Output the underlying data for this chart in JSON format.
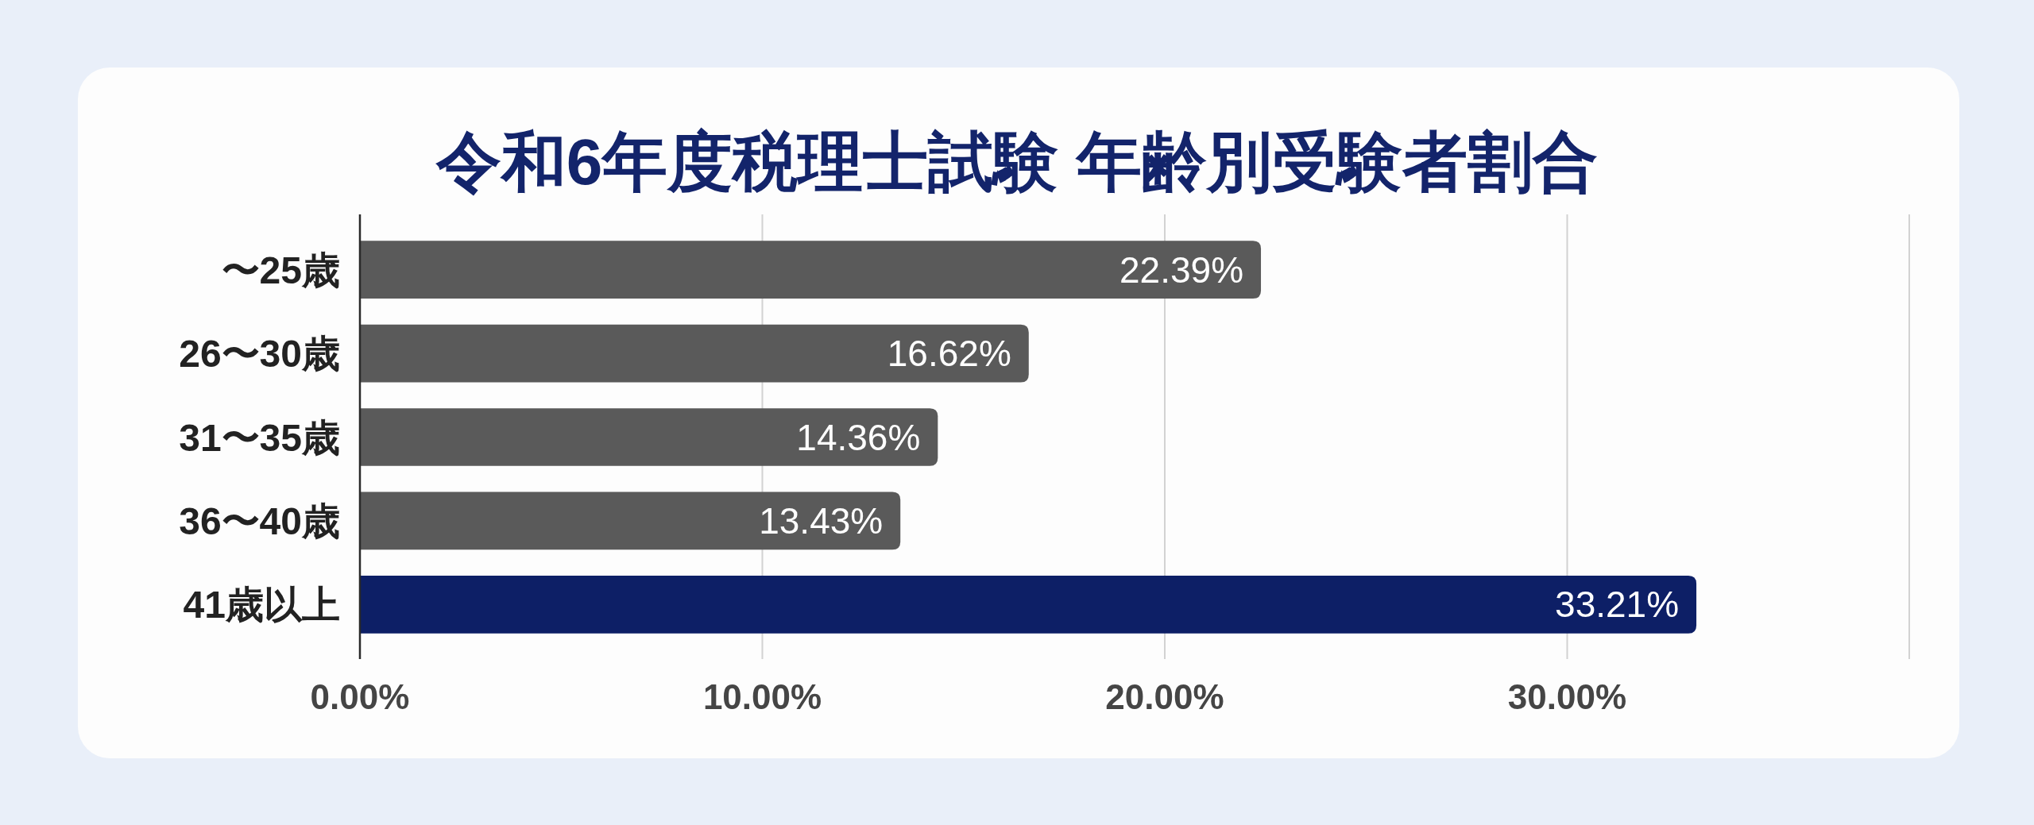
{
  "chart_data": {
    "type": "bar",
    "orientation": "horizontal",
    "title": "令和6年度税理士試験 年齢別受験者割合",
    "categories": [
      "〜25歳",
      "26〜30歳",
      "31〜35歳",
      "36〜40歳",
      "41歳以上"
    ],
    "values": [
      22.39,
      16.62,
      14.36,
      13.43,
      33.21
    ],
    "colors": [
      "#5a5a5a",
      "#5a5a5a",
      "#5a5a5a",
      "#5a5a5a",
      "#0d1f66"
    ],
    "value_labels": [
      "22.39%",
      "16.62%",
      "14.36%",
      "13.43%",
      "33.21%"
    ],
    "xlim": [
      0,
      38.5
    ],
    "xticks": [
      {
        "value": 0,
        "label": "0.00%"
      },
      {
        "value": 10,
        "label": "10.00%"
      },
      {
        "value": 20,
        "label": "20.00%"
      },
      {
        "value": 30,
        "label": "30.00%"
      }
    ],
    "grid": "x"
  }
}
